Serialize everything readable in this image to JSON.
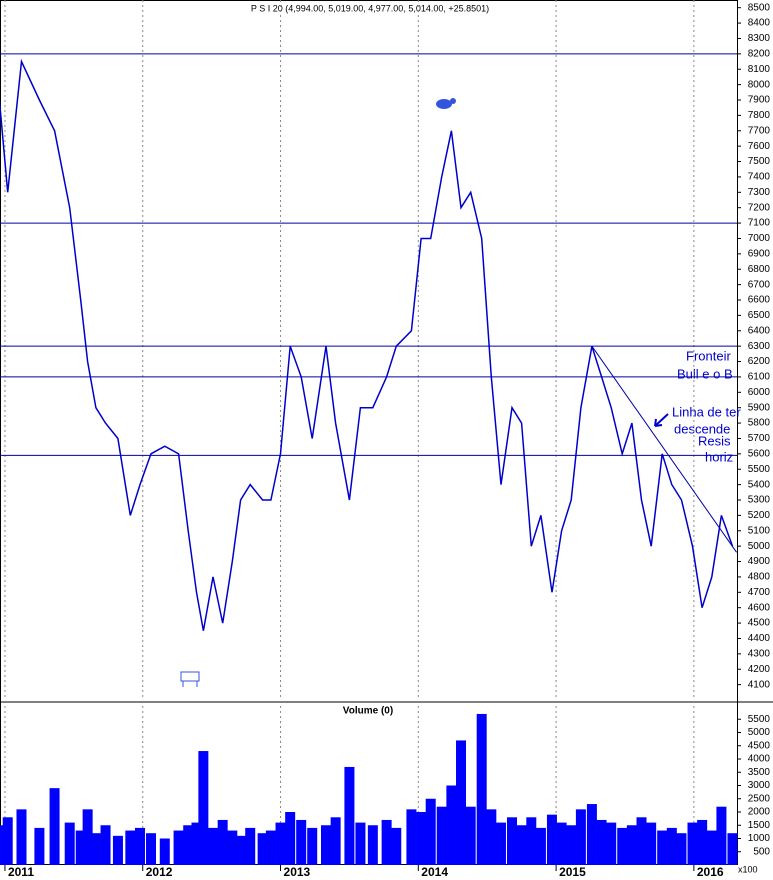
{
  "chart_data": [
    {
      "type": "line",
      "title": "P S I 20 (4,994.00, 5,019.00, 4,977.00, 5,014.00, +25.8501)",
      "color": "#0000cc",
      "x": [
        2010.96,
        2011.02,
        2011.12,
        2011.25,
        2011.36,
        2011.47,
        2011.55,
        2011.6,
        2011.66,
        2011.73,
        2011.82,
        2011.91,
        2011.98,
        2012.06,
        2012.16,
        2012.26,
        2012.33,
        2012.39,
        2012.44,
        2012.51,
        2012.58,
        2012.65,
        2012.71,
        2012.78,
        2012.87,
        2012.93,
        2013.0,
        2013.07,
        2013.15,
        2013.23,
        2013.33,
        2013.4,
        2013.5,
        2013.58,
        2013.67,
        2013.77,
        2013.84,
        2013.95,
        2014.02,
        2014.09,
        2014.17,
        2014.24,
        2014.31,
        2014.38,
        2014.46,
        2014.53,
        2014.6,
        2014.68,
        2014.75,
        2014.82,
        2014.89,
        2014.97,
        2015.04,
        2015.11,
        2015.18,
        2015.26,
        2015.33,
        2015.4,
        2015.48,
        2015.55,
        2015.62,
        2015.69,
        2015.77,
        2015.84,
        2015.91,
        2015.99,
        2016.06,
        2016.13,
        2016.2,
        2016.28
      ],
      "values": [
        7900,
        7300,
        8150,
        7900,
        7700,
        7200,
        6600,
        6200,
        5900,
        5800,
        5700,
        5200,
        5400,
        5600,
        5650,
        5600,
        5100,
        4700,
        4450,
        4800,
        4500,
        4900,
        5300,
        5400,
        5300,
        5300,
        5600,
        6300,
        6100,
        5700,
        6300,
        5800,
        5300,
        5900,
        5900,
        6100,
        6300,
        6400,
        7000,
        7000,
        7400,
        7700,
        7200,
        7300,
        7000,
        6100,
        5400,
        5900,
        5800,
        5000,
        5200,
        4700,
        5100,
        5300,
        5900,
        6300,
        6100,
        5900,
        5600,
        5800,
        5300,
        5000,
        5600,
        5400,
        5300,
        5000,
        4600,
        4800,
        5200,
        5000
      ],
      "xlim": [
        2010.964,
        2016.313
      ],
      "xticks": [
        2011,
        2012,
        2013,
        2014,
        2015,
        2016
      ],
      "ylim": [
        4000,
        8550
      ],
      "yticks": [
        4100,
        4200,
        4300,
        4400,
        4500,
        4600,
        4700,
        4800,
        4900,
        5000,
        5100,
        5200,
        5300,
        5400,
        5500,
        5600,
        5700,
        5800,
        5900,
        6000,
        6100,
        6200,
        6300,
        6400,
        6500,
        6600,
        6700,
        6800,
        6900,
        7000,
        7100,
        7200,
        7300,
        7400,
        7500,
        7600,
        7700,
        7800,
        7900,
        8000,
        8100,
        8200,
        8300,
        8400,
        8500
      ],
      "hlines": [
        8200,
        7100,
        6300,
        6100,
        5590
      ],
      "trendline": {
        "x": [
          2015.26,
          2016.31
        ],
        "values": [
          6300,
          4960
        ]
      },
      "annotations": [
        "Fronteir",
        "Bull e o B",
        "Linha de ter",
        "descende",
        "Resis",
        "horiz"
      ]
    },
    {
      "type": "bar",
      "title": "Volume (0)",
      "color": "#0000ff",
      "unit_label": "x100",
      "x": [
        2010.96,
        2011.02,
        2011.12,
        2011.25,
        2011.36,
        2011.47,
        2011.55,
        2011.6,
        2011.66,
        2011.73,
        2011.82,
        2011.91,
        2011.98,
        2012.06,
        2012.16,
        2012.26,
        2012.33,
        2012.39,
        2012.44,
        2012.51,
        2012.58,
        2012.65,
        2012.71,
        2012.78,
        2012.87,
        2012.93,
        2013.0,
        2013.07,
        2013.15,
        2013.23,
        2013.33,
        2013.4,
        2013.5,
        2013.58,
        2013.67,
        2013.77,
        2013.84,
        2013.95,
        2014.02,
        2014.09,
        2014.17,
        2014.24,
        2014.31,
        2014.38,
        2014.46,
        2014.53,
        2014.6,
        2014.68,
        2014.75,
        2014.82,
        2014.89,
        2014.97,
        2015.04,
        2015.11,
        2015.18,
        2015.26,
        2015.33,
        2015.4,
        2015.48,
        2015.55,
        2015.62,
        2015.69,
        2015.77,
        2015.84,
        2015.91,
        2015.99,
        2016.06,
        2016.13,
        2016.2,
        2016.28
      ],
      "values": [
        1500,
        1800,
        2100,
        1400,
        2900,
        1600,
        1300,
        2100,
        1200,
        1500,
        1100,
        1300,
        1400,
        1200,
        1000,
        1300,
        1500,
        1600,
        4300,
        1400,
        1700,
        1300,
        1100,
        1400,
        1200,
        1300,
        1600,
        2000,
        1700,
        1400,
        1500,
        1800,
        3700,
        1600,
        1500,
        1700,
        1400,
        2100,
        2000,
        2500,
        2200,
        3000,
        4700,
        2200,
        5700,
        2100,
        1600,
        1800,
        1500,
        1800,
        1400,
        1900,
        1600,
        1500,
        2100,
        2300,
        1700,
        1600,
        1400,
        1500,
        1800,
        1600,
        1300,
        1400,
        1200,
        1600,
        1700,
        1300,
        2200,
        1200
      ],
      "xlim": [
        2010.964,
        2016.313
      ],
      "xticks": [
        2011,
        2012,
        2013,
        2014,
        2015,
        2016
      ],
      "ylim": [
        0,
        6000
      ],
      "yticks": [
        500,
        1000,
        1500,
        2000,
        2500,
        3000,
        3500,
        4000,
        4500,
        5000,
        5500
      ]
    }
  ]
}
